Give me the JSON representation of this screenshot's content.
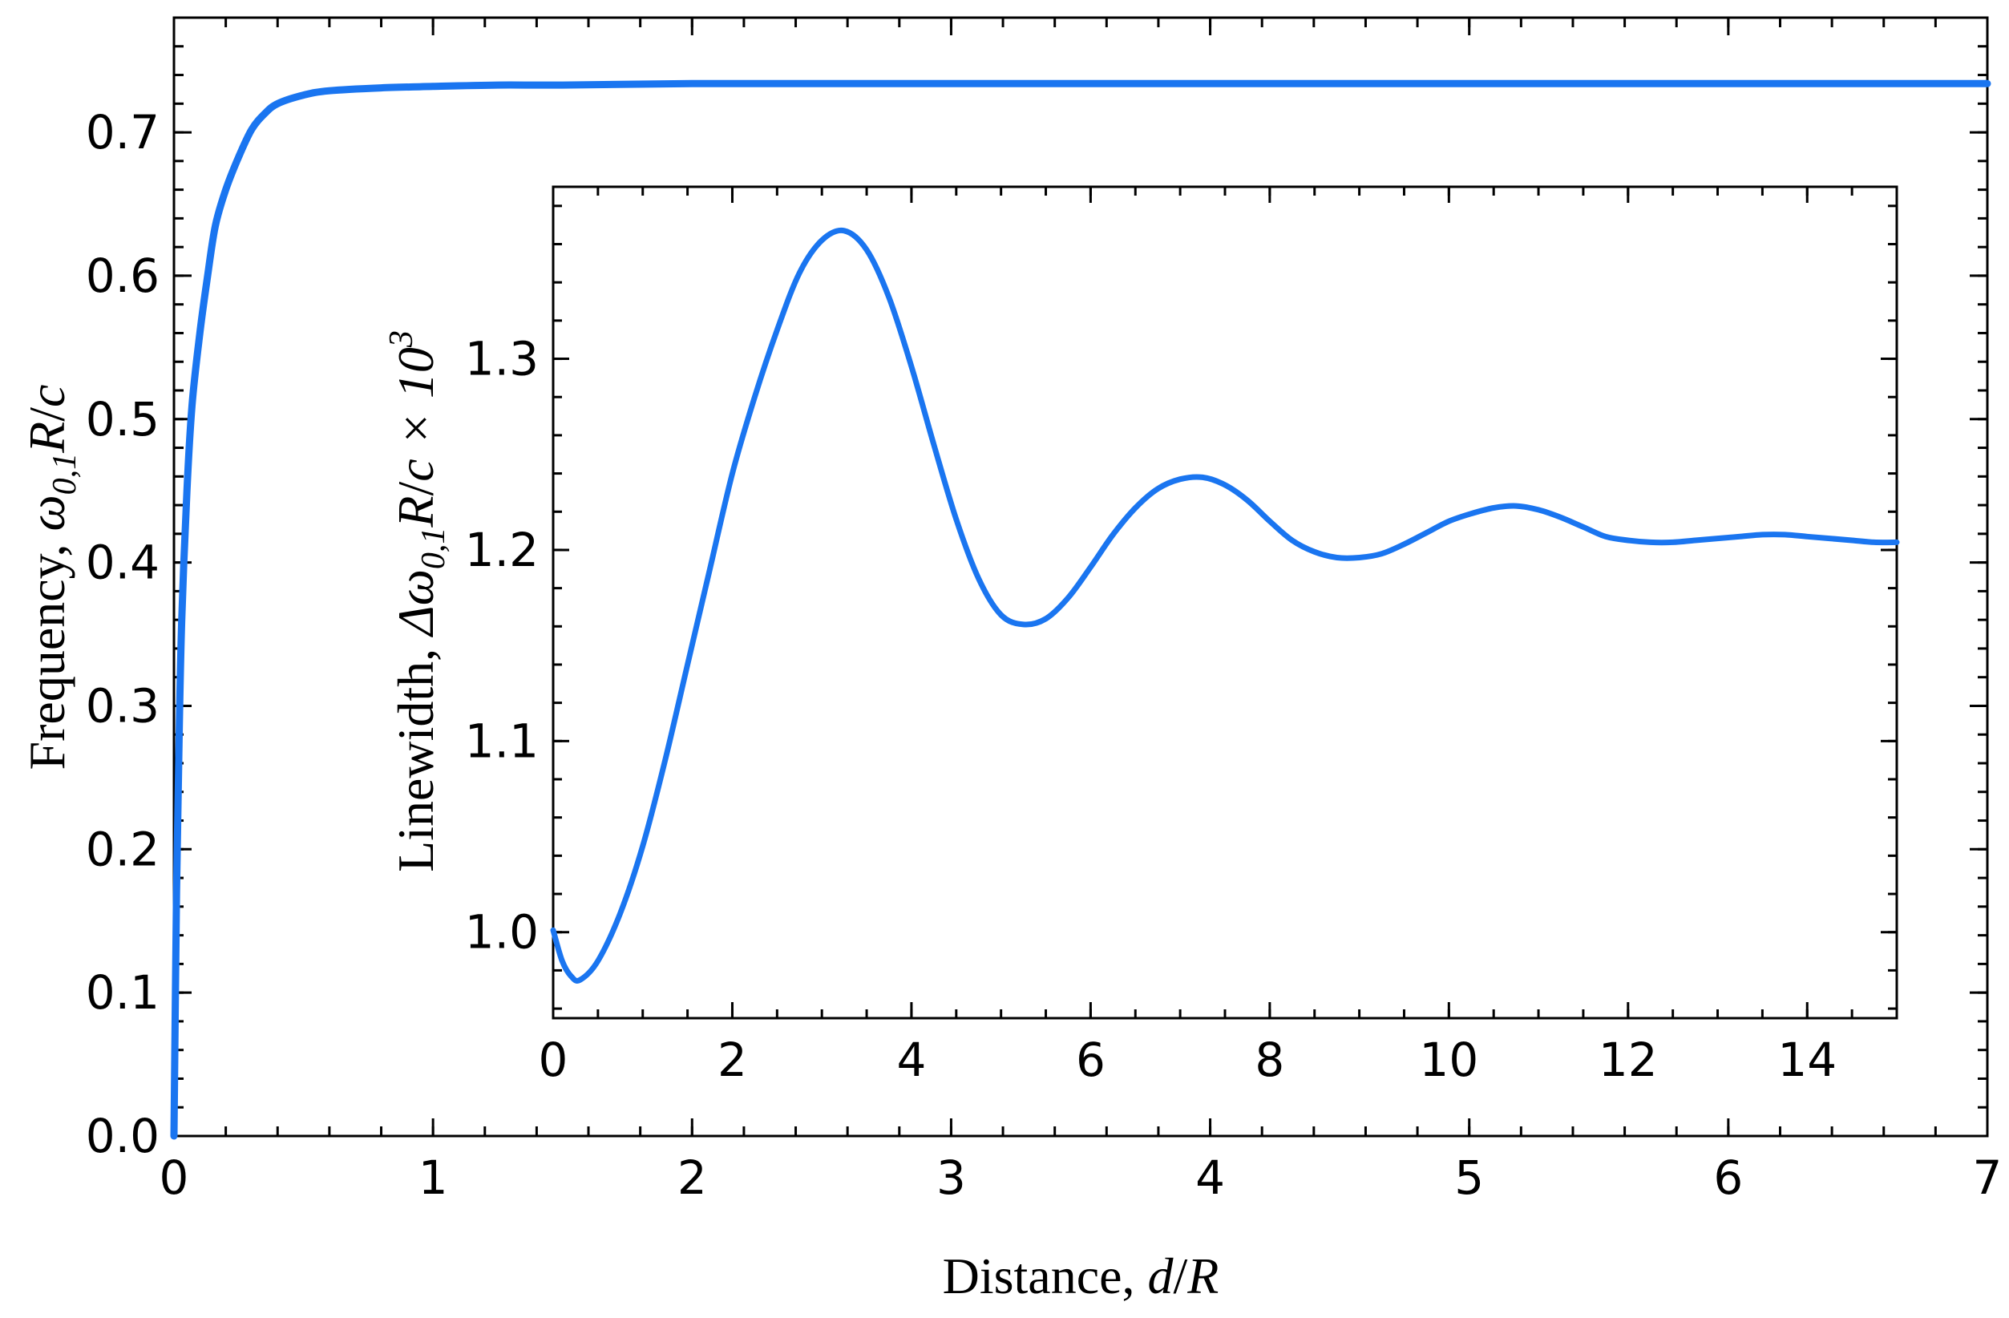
{
  "chart_data": [
    {
      "type": "line",
      "x": [
        0,
        0.01,
        0.02,
        0.03,
        0.05,
        0.07,
        0.1,
        0.13,
        0.16,
        0.2,
        0.25,
        0.3,
        0.35,
        0.4,
        0.5,
        0.6,
        0.8,
        1.0,
        1.25,
        1.5,
        2.0,
        2.5,
        3.0,
        4.0,
        5.0,
        6.0,
        7.0
      ],
      "values": [
        0.0,
        0.17,
        0.28,
        0.36,
        0.45,
        0.51,
        0.56,
        0.6,
        0.635,
        0.66,
        0.683,
        0.702,
        0.713,
        0.72,
        0.726,
        0.729,
        0.731,
        0.732,
        0.733,
        0.733,
        0.734,
        0.734,
        0.734,
        0.734,
        0.734,
        0.734,
        0.734
      ],
      "color": "#1a75f0",
      "xlabel": [
        "Distance, ",
        "d",
        "/",
        "R"
      ],
      "ylabel": [
        "Frequency, ",
        "ω",
        "0,1",
        "R",
        "/",
        "c"
      ],
      "xlim": [
        0,
        7
      ],
      "ylim": [
        0,
        0.78
      ],
      "xticks": [
        "0",
        "1",
        "2",
        "3",
        "4",
        "5",
        "6",
        "7"
      ],
      "yticks": [
        "0.0",
        "0.1",
        "0.2",
        "0.3",
        "0.4",
        "0.5",
        "0.6",
        "0.7"
      ],
      "grid": false
    },
    {
      "type": "line",
      "x": [
        0,
        0.1,
        0.2,
        0.3,
        0.5,
        0.75,
        1.0,
        1.25,
        1.5,
        1.75,
        2.0,
        2.25,
        2.5,
        2.75,
        3.0,
        3.25,
        3.5,
        3.75,
        4.0,
        4.25,
        4.5,
        4.75,
        5.0,
        5.25,
        5.5,
        5.75,
        6.0,
        6.25,
        6.5,
        6.75,
        7.0,
        7.25,
        7.5,
        7.75,
        8.0,
        8.25,
        8.5,
        8.75,
        9.0,
        9.25,
        9.5,
        9.75,
        10.0,
        10.25,
        10.5,
        10.75,
        11.0,
        11.25,
        11.5,
        11.75,
        12.0,
        12.25,
        12.5,
        12.75,
        13.0,
        13.25,
        13.5,
        13.75,
        14.0,
        14.25,
        14.5,
        14.75,
        15.0
      ],
      "values": [
        1.001,
        0.985,
        0.977,
        0.975,
        0.985,
        1.01,
        1.045,
        1.09,
        1.14,
        1.19,
        1.24,
        1.28,
        1.315,
        1.345,
        1.362,
        1.367,
        1.357,
        1.332,
        1.296,
        1.255,
        1.216,
        1.185,
        1.166,
        1.161,
        1.164,
        1.175,
        1.191,
        1.208,
        1.222,
        1.232,
        1.237,
        1.238,
        1.234,
        1.226,
        1.215,
        1.205,
        1.199,
        1.196,
        1.196,
        1.198,
        1.203,
        1.209,
        1.215,
        1.219,
        1.222,
        1.223,
        1.221,
        1.217,
        1.212,
        1.207,
        1.205,
        1.204,
        1.204,
        1.205,
        1.206,
        1.207,
        1.208,
        1.208,
        1.207,
        1.206,
        1.205,
        1.204,
        1.204
      ],
      "color": "#1a75f0",
      "ylabel": [
        "Linewidth, ",
        "Δω",
        "0,1",
        "R",
        "/",
        "c",
        " × 10",
        "3"
      ],
      "xlim": [
        0,
        15
      ],
      "ylim": [
        0.955,
        1.39
      ],
      "xticks": [
        "0",
        "2",
        "4",
        "6",
        "8",
        "10",
        "12",
        "14"
      ],
      "yticks": [
        "1.0",
        "1.1",
        "1.2",
        "1.3"
      ],
      "grid": false
    }
  ]
}
